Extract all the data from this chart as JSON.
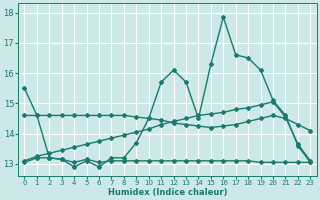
{
  "title": "",
  "xlabel": "Humidex (Indice chaleur)",
  "bg_color": "#cce8e8",
  "grid_color": "#ffffff",
  "line_color": "#1a7a6e",
  "xlim": [
    -0.5,
    23.5
  ],
  "ylim": [
    12.6,
    18.3
  ],
  "yticks": [
    13,
    14,
    15,
    16,
    17,
    18
  ],
  "xticks": [
    0,
    1,
    2,
    3,
    4,
    5,
    6,
    7,
    8,
    9,
    10,
    11,
    12,
    13,
    14,
    15,
    16,
    17,
    18,
    19,
    20,
    21,
    22,
    23
  ],
  "line1_x": [
    0,
    1,
    2,
    3,
    4,
    5,
    6,
    7,
    8,
    9,
    10,
    11,
    12,
    13,
    14,
    15,
    16,
    17,
    18,
    19,
    20,
    21,
    22,
    23
  ],
  "line1_y": [
    15.5,
    14.6,
    13.2,
    13.15,
    12.9,
    13.1,
    12.9,
    13.2,
    13.2,
    13.7,
    14.5,
    15.7,
    16.1,
    15.7,
    14.5,
    16.3,
    17.85,
    16.6,
    16.5,
    16.1,
    15.1,
    14.6,
    13.6,
    13.05
  ],
  "line2_x": [
    0,
    1,
    2,
    3,
    4,
    5,
    6,
    7,
    8,
    9,
    10,
    11,
    12,
    13,
    14,
    15,
    16,
    17,
    18,
    19,
    20,
    21,
    22,
    23
  ],
  "line2_y": [
    13.05,
    13.2,
    13.2,
    13.15,
    13.05,
    13.15,
    13.05,
    13.1,
    13.1,
    13.1,
    13.1,
    13.1,
    13.1,
    13.1,
    13.1,
    13.1,
    13.1,
    13.1,
    13.1,
    13.05,
    13.05,
    13.05,
    13.05,
    13.05
  ],
  "line3_x": [
    0,
    1,
    2,
    3,
    4,
    5,
    6,
    7,
    8,
    9,
    10,
    11,
    12,
    13,
    14,
    15,
    16,
    17,
    18,
    19,
    20,
    21,
    22,
    23
  ],
  "line3_y": [
    13.1,
    13.25,
    13.35,
    13.45,
    13.55,
    13.65,
    13.75,
    13.85,
    13.95,
    14.05,
    14.15,
    14.3,
    14.4,
    14.5,
    14.6,
    14.65,
    14.7,
    14.8,
    14.85,
    14.95,
    15.05,
    14.55,
    13.65,
    13.1
  ],
  "line4_x": [
    0,
    1,
    2,
    3,
    4,
    5,
    6,
    7,
    8,
    9,
    10,
    11,
    12,
    13,
    14,
    15,
    16,
    17,
    18,
    19,
    20,
    21,
    22,
    23
  ],
  "line4_y": [
    14.6,
    14.6,
    14.6,
    14.6,
    14.6,
    14.6,
    14.6,
    14.6,
    14.6,
    14.55,
    14.5,
    14.45,
    14.35,
    14.3,
    14.25,
    14.2,
    14.25,
    14.3,
    14.4,
    14.5,
    14.6,
    14.5,
    14.3,
    14.1
  ]
}
